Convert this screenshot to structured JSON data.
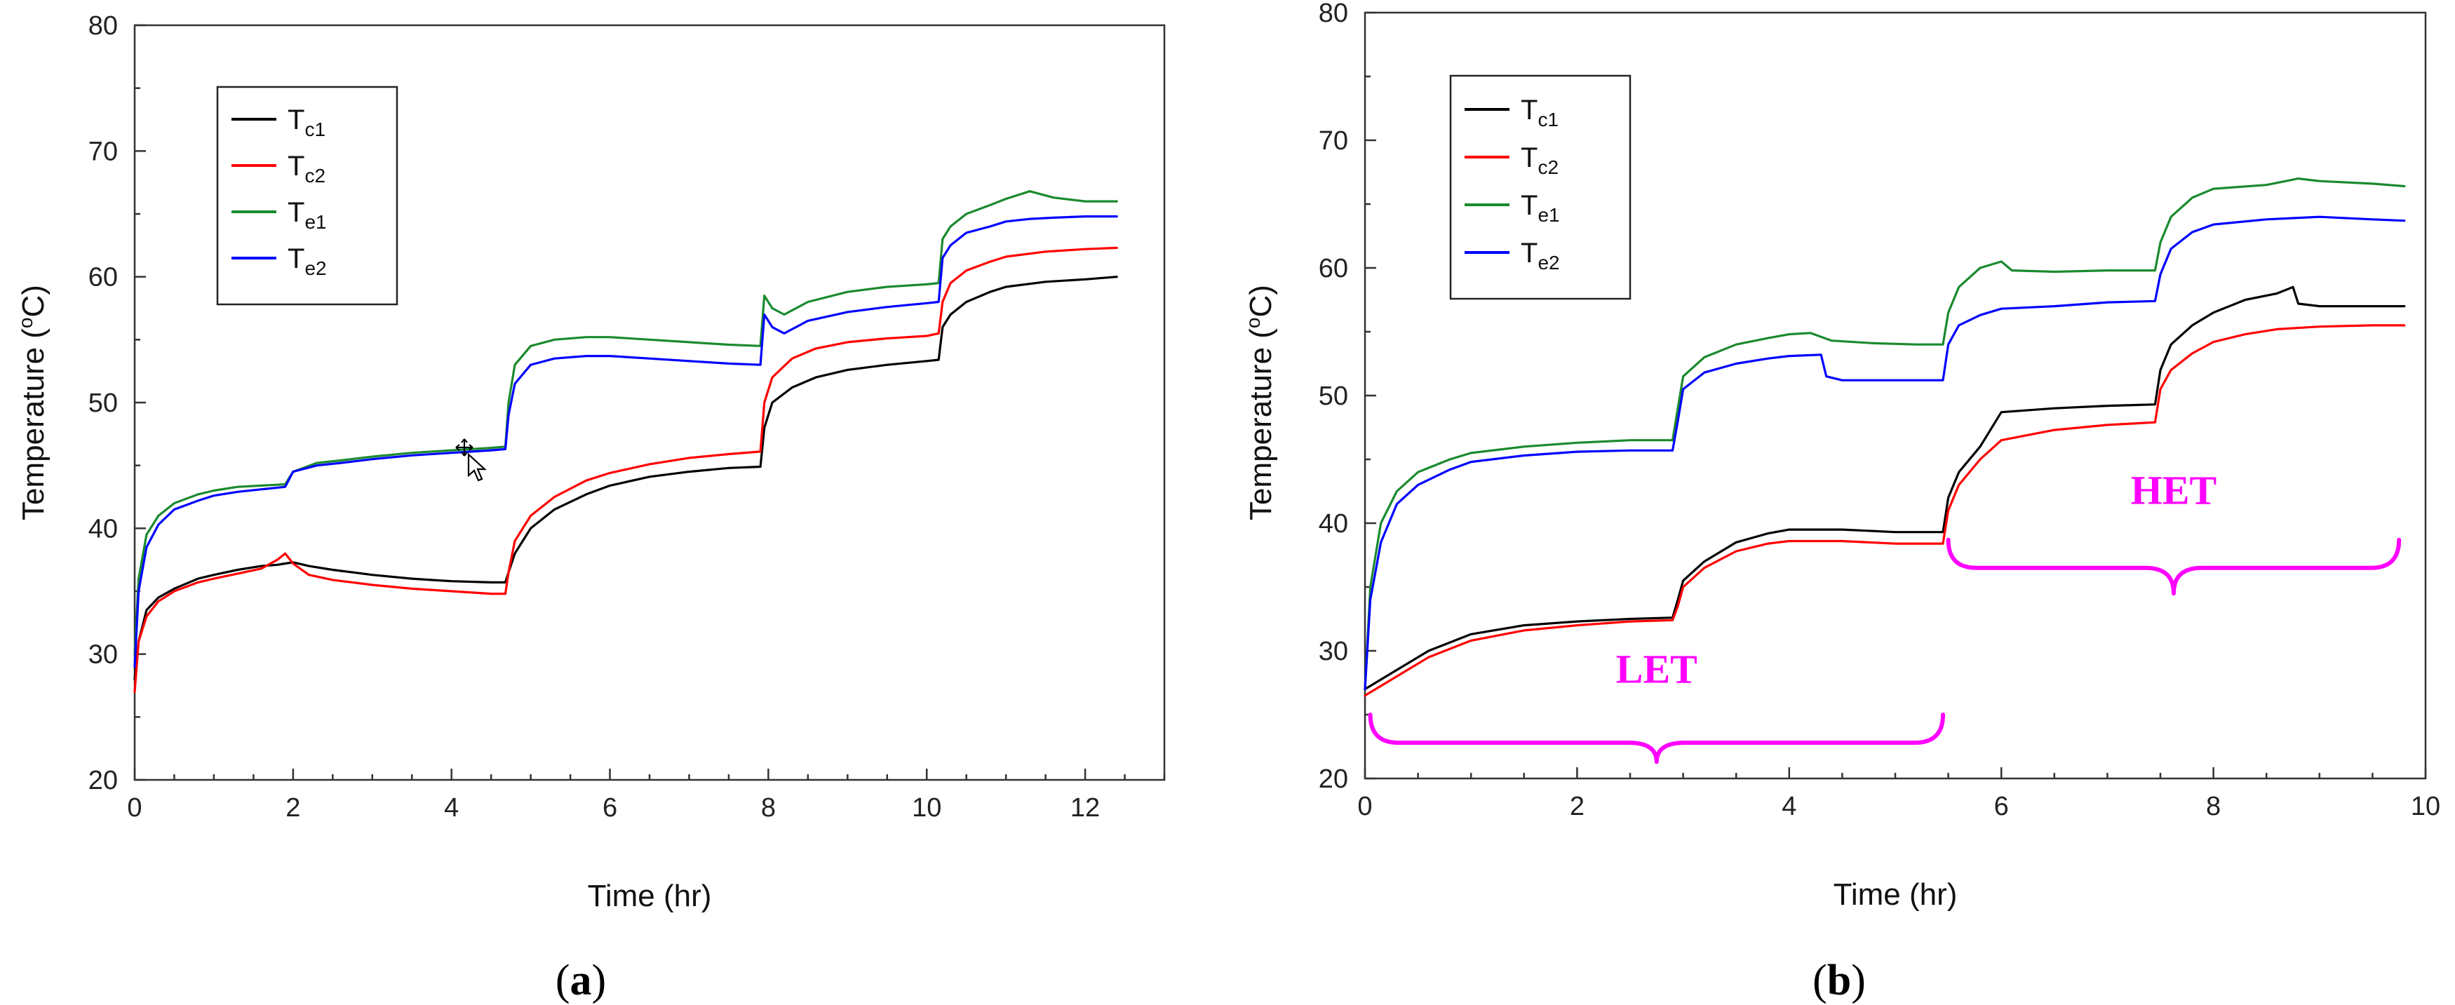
{
  "figure": {
    "panel_labels": [
      {
        "open": "(",
        "letter": "a",
        "close": ")"
      },
      {
        "open": "(",
        "letter": "b",
        "close": ")"
      }
    ]
  },
  "chart_data": [
    {
      "id": "a",
      "type": "line",
      "title": "",
      "xlabel": "Time (hr)",
      "ylabel_main": "Temperature (",
      "ylabel_sup": "o",
      "ylabel_end": "C)",
      "xlim": [
        0,
        13
      ],
      "ylim": [
        20,
        80
      ],
      "xticks": [
        0,
        2,
        4,
        6,
        8,
        10,
        12
      ],
      "yticks": [
        20,
        30,
        40,
        50,
        60,
        70,
        80
      ],
      "grid": false,
      "legend_position": "top-left",
      "series": [
        {
          "name": "Tc1",
          "base": "T",
          "sub": "c1",
          "color": "#000000",
          "x": [
            0,
            0.05,
            0.15,
            0.3,
            0.5,
            0.8,
            1.0,
            1.3,
            1.6,
            1.8,
            1.9,
            2.0,
            2.2,
            2.5,
            3.0,
            3.5,
            4.0,
            4.5,
            4.68,
            4.72,
            4.8,
            5.0,
            5.3,
            5.7,
            6.0,
            6.5,
            7.0,
            7.5,
            7.9,
            7.95,
            8.05,
            8.3,
            8.6,
            9.0,
            9.5,
            10.0,
            10.15,
            10.2,
            10.3,
            10.5,
            10.8,
            11.0,
            11.5,
            12.0,
            12.4
          ],
          "y": [
            28,
            31,
            33.5,
            34.5,
            35.2,
            36,
            36.3,
            36.7,
            37,
            37.1,
            37.2,
            37.3,
            37,
            36.7,
            36.3,
            36,
            35.8,
            35.7,
            35.7,
            36.5,
            38,
            40,
            41.5,
            42.7,
            43.4,
            44.1,
            44.5,
            44.8,
            44.9,
            48,
            50,
            51.2,
            52,
            52.6,
            53,
            53.3,
            53.4,
            56,
            57,
            58,
            58.8,
            59.2,
            59.6,
            59.8,
            60
          ]
        },
        {
          "name": "Tc2",
          "base": "T",
          "sub": "c2",
          "color": "#ff0000",
          "x": [
            0,
            0.05,
            0.15,
            0.3,
            0.5,
            0.8,
            1.0,
            1.3,
            1.6,
            1.8,
            1.9,
            2.0,
            2.2,
            2.5,
            3.0,
            3.5,
            4.0,
            4.5,
            4.68,
            4.72,
            4.8,
            5.0,
            5.3,
            5.7,
            6.0,
            6.5,
            7.0,
            7.5,
            7.9,
            7.95,
            8.05,
            8.3,
            8.6,
            9.0,
            9.5,
            10.0,
            10.15,
            10.2,
            10.3,
            10.5,
            10.8,
            11.0,
            11.5,
            12.0,
            12.4
          ],
          "y": [
            27,
            31,
            33,
            34.2,
            35,
            35.7,
            36,
            36.4,
            36.8,
            37.5,
            38,
            37.2,
            36.3,
            35.9,
            35.5,
            35.2,
            35,
            34.8,
            34.8,
            36.5,
            39,
            41,
            42.5,
            43.8,
            44.4,
            45.1,
            45.6,
            45.9,
            46.1,
            50,
            52,
            53.5,
            54.3,
            54.8,
            55.1,
            55.3,
            55.5,
            58,
            59.5,
            60.5,
            61.2,
            61.6,
            62,
            62.2,
            62.3
          ]
        },
        {
          "name": "Te1",
          "base": "T",
          "sub": "e1",
          "color": "#1a8a2e",
          "x": [
            0,
            0.05,
            0.15,
            0.3,
            0.5,
            0.8,
            1.0,
            1.3,
            1.6,
            1.9,
            2.0,
            2.3,
            2.6,
            3.0,
            3.5,
            4.0,
            4.5,
            4.68,
            4.72,
            4.8,
            5.0,
            5.3,
            5.7,
            6.0,
            6.5,
            7.0,
            7.5,
            7.9,
            7.95,
            8.05,
            8.2,
            8.5,
            9.0,
            9.5,
            10.0,
            10.15,
            10.2,
            10.3,
            10.5,
            10.8,
            11.0,
            11.3,
            11.6,
            12.0,
            12.4
          ],
          "y": [
            30,
            36,
            39.5,
            41,
            42,
            42.7,
            43,
            43.3,
            43.4,
            43.5,
            44.5,
            45.2,
            45.4,
            45.7,
            46,
            46.2,
            46.4,
            46.5,
            50,
            53,
            54.5,
            55,
            55.2,
            55.2,
            55,
            54.8,
            54.6,
            54.5,
            58.5,
            57.5,
            57,
            58,
            58.8,
            59.2,
            59.4,
            59.5,
            63,
            64,
            65,
            65.7,
            66.2,
            66.8,
            66.3,
            66,
            66
          ]
        },
        {
          "name": "Te2",
          "base": "T",
          "sub": "e2",
          "color": "#0000ff",
          "x": [
            0,
            0.05,
            0.15,
            0.3,
            0.5,
            0.8,
            1.0,
            1.3,
            1.6,
            1.9,
            2.0,
            2.3,
            2.6,
            3.0,
            3.5,
            4.0,
            4.5,
            4.68,
            4.72,
            4.8,
            5.0,
            5.3,
            5.7,
            6.0,
            6.5,
            7.0,
            7.5,
            7.9,
            7.95,
            8.05,
            8.2,
            8.5,
            9.0,
            9.5,
            10.0,
            10.15,
            10.2,
            10.3,
            10.5,
            10.8,
            11.0,
            11.3,
            11.6,
            12.0,
            12.4
          ],
          "y": [
            29,
            35,
            38.5,
            40.3,
            41.5,
            42.2,
            42.6,
            42.9,
            43.1,
            43.3,
            44.5,
            45,
            45.2,
            45.5,
            45.8,
            46,
            46.2,
            46.3,
            49,
            51.5,
            53,
            53.5,
            53.7,
            53.7,
            53.5,
            53.3,
            53.1,
            53,
            57,
            56,
            55.5,
            56.5,
            57.2,
            57.6,
            57.9,
            58,
            61.5,
            62.5,
            63.5,
            64,
            64.4,
            64.6,
            64.7,
            64.8,
            64.8
          ]
        }
      ],
      "legend_entries": [
        {
          "base": "T",
          "sub": "c1"
        },
        {
          "base": "T",
          "sub": "c2"
        },
        {
          "base": "T",
          "sub": "e1"
        },
        {
          "base": "T",
          "sub": "e2"
        }
      ]
    },
    {
      "id": "b",
      "type": "line",
      "title": "",
      "xlabel": "Time (hr)",
      "ylabel_main": "Temperature (",
      "ylabel_sup": "o",
      "ylabel_end": "C)",
      "xlim": [
        0,
        10
      ],
      "ylim": [
        20,
        80
      ],
      "xticks": [
        0,
        2,
        4,
        6,
        8,
        10
      ],
      "yticks": [
        20,
        30,
        40,
        50,
        60,
        70,
        80
      ],
      "grid": false,
      "legend_position": "top-left",
      "series": [
        {
          "name": "Tc1",
          "base": "T",
          "sub": "c1",
          "color": "#000000",
          "x": [
            0,
            0.1,
            0.3,
            0.6,
            1.0,
            1.5,
            2.0,
            2.5,
            2.9,
            2.95,
            3.0,
            3.2,
            3.5,
            3.8,
            4.0,
            4.5,
            5.0,
            5.45,
            5.5,
            5.6,
            5.8,
            6.0,
            6.5,
            7.0,
            7.45,
            7.5,
            7.6,
            7.8,
            8.0,
            8.3,
            8.6,
            8.75,
            8.8,
            9.0,
            9.5,
            9.8
          ],
          "y": [
            27,
            27.5,
            28.5,
            30,
            31.3,
            32,
            32.3,
            32.5,
            32.6,
            34,
            35.5,
            37,
            38.5,
            39.2,
            39.5,
            39.5,
            39.3,
            39.3,
            42,
            44,
            46,
            48.7,
            49,
            49.2,
            49.3,
            52,
            54,
            55.5,
            56.5,
            57.5,
            58,
            58.5,
            57.2,
            57,
            57,
            57
          ]
        },
        {
          "name": "Tc2",
          "base": "T",
          "sub": "c2",
          "color": "#ff0000",
          "x": [
            0,
            0.1,
            0.3,
            0.6,
            1.0,
            1.5,
            2.0,
            2.5,
            2.9,
            2.95,
            3.0,
            3.2,
            3.5,
            3.8,
            4.0,
            4.5,
            5.0,
            5.45,
            5.5,
            5.6,
            5.8,
            6.0,
            6.5,
            7.0,
            7.45,
            7.5,
            7.6,
            7.8,
            8.0,
            8.3,
            8.6,
            9.0,
            9.5,
            9.8
          ],
          "y": [
            26.5,
            27,
            28,
            29.5,
            30.8,
            31.6,
            32,
            32.3,
            32.4,
            33.5,
            35,
            36.5,
            37.8,
            38.4,
            38.6,
            38.6,
            38.4,
            38.4,
            41,
            43,
            45,
            46.5,
            47.3,
            47.7,
            47.9,
            50.5,
            52,
            53.3,
            54.2,
            54.8,
            55.2,
            55.4,
            55.5,
            55.5
          ]
        },
        {
          "name": "Te1",
          "base": "T",
          "sub": "e1",
          "color": "#1a8a2e",
          "x": [
            0,
            0.05,
            0.15,
            0.3,
            0.5,
            0.8,
            1.0,
            1.5,
            2.0,
            2.5,
            2.9,
            2.95,
            3.0,
            3.2,
            3.5,
            3.8,
            4.0,
            4.2,
            4.4,
            4.8,
            5.2,
            5.45,
            5.5,
            5.6,
            5.8,
            6.0,
            6.1,
            6.5,
            7.0,
            7.45,
            7.5,
            7.6,
            7.8,
            8.0,
            8.5,
            8.8,
            9.0,
            9.5,
            9.8
          ],
          "y": [
            27,
            35,
            40,
            42.5,
            44,
            45,
            45.5,
            46,
            46.3,
            46.5,
            46.5,
            49,
            51.5,
            53,
            54,
            54.5,
            54.8,
            54.9,
            54.3,
            54.1,
            54,
            54,
            56.5,
            58.5,
            60,
            60.5,
            59.8,
            59.7,
            59.8,
            59.8,
            62,
            64,
            65.5,
            66.2,
            66.5,
            67,
            66.8,
            66.6,
            66.4
          ]
        },
        {
          "name": "Te2",
          "base": "T",
          "sub": "e2",
          "color": "#0000ff",
          "x": [
            0,
            0.05,
            0.15,
            0.3,
            0.5,
            0.8,
            1.0,
            1.5,
            2.0,
            2.5,
            2.9,
            2.95,
            3.0,
            3.2,
            3.5,
            3.8,
            4.0,
            4.3,
            4.35,
            4.5,
            5.0,
            5.45,
            5.5,
            5.6,
            5.8,
            6.0,
            6.5,
            7.0,
            7.45,
            7.5,
            7.6,
            7.8,
            8.0,
            8.5,
            9.0,
            9.5,
            9.8
          ],
          "y": [
            27,
            34,
            38.5,
            41.5,
            43,
            44.2,
            44.8,
            45.3,
            45.6,
            45.7,
            45.7,
            48,
            50.5,
            51.8,
            52.5,
            52.9,
            53.1,
            53.2,
            51.5,
            51.2,
            51.2,
            51.2,
            54,
            55.5,
            56.3,
            56.8,
            57,
            57.3,
            57.4,
            59.5,
            61.5,
            62.8,
            63.4,
            63.8,
            64,
            63.8,
            63.7
          ]
        }
      ],
      "legend_entries": [
        {
          "base": "T",
          "sub": "c1"
        },
        {
          "base": "T",
          "sub": "c2"
        },
        {
          "base": "T",
          "sub": "e1"
        },
        {
          "base": "T",
          "sub": "e2"
        }
      ],
      "annotations": [
        {
          "text": "LET",
          "color": "#ff00ff",
          "x_range": [
            0.05,
            5.45
          ],
          "y_level": 22.8,
          "tip_y": 21.3,
          "label_y": 27.5
        },
        {
          "text": "HET",
          "color": "#ff00ff",
          "x_range": [
            5.5,
            9.75
          ],
          "y_level": 36.5,
          "tip_y": 34.5,
          "label_y": 41.5
        }
      ]
    }
  ]
}
